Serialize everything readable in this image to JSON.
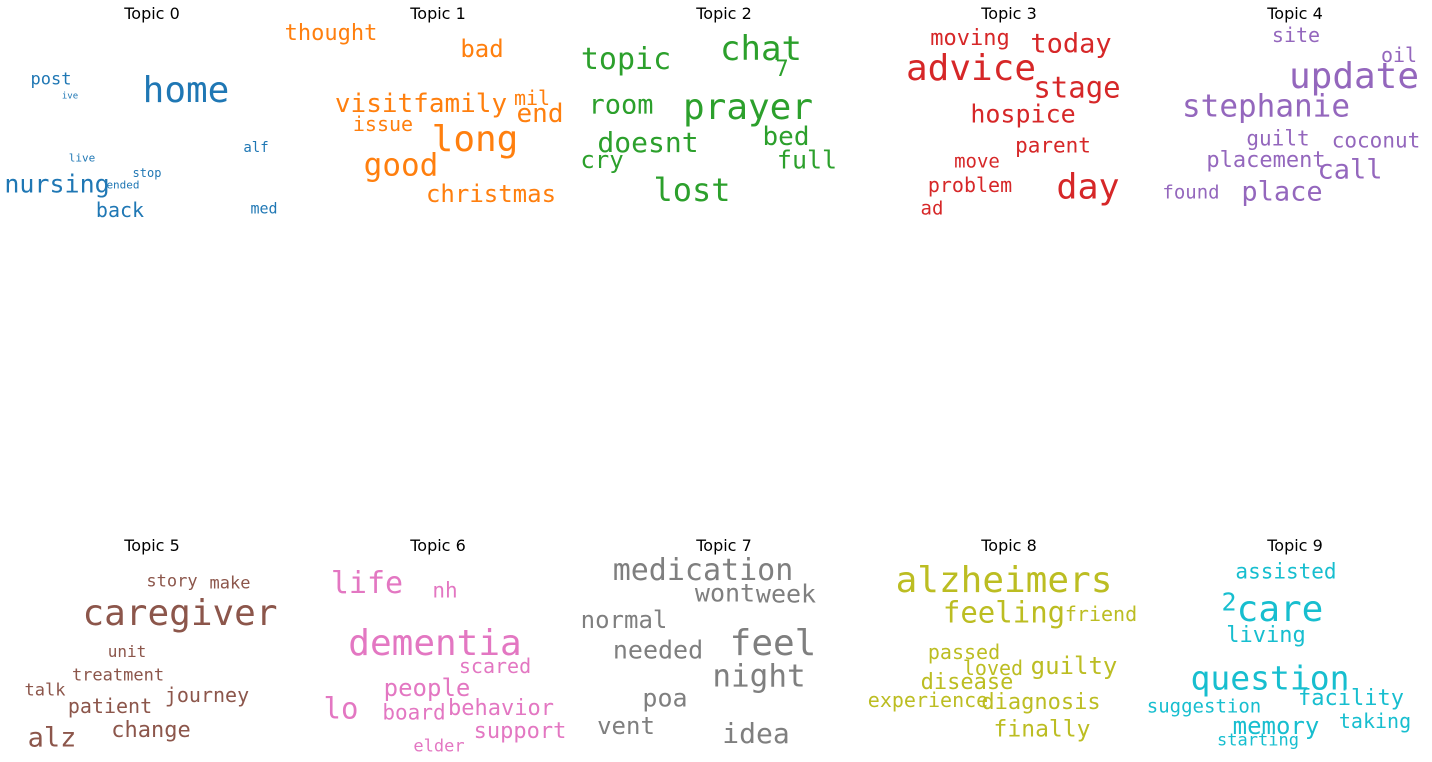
{
  "topics": [
    {
      "title": "Topic 0",
      "color": "#1f77b4",
      "words": [
        "home",
        "nursing",
        "back",
        "post",
        "alf",
        "med",
        "stop",
        "ended",
        "live",
        "ive"
      ],
      "weights": [
        1.0,
        0.7,
        0.55,
        0.46,
        0.38,
        0.42,
        0.34,
        0.3,
        0.3,
        0.26
      ]
    },
    {
      "title": "Topic 1",
      "color": "#ff7f0e",
      "words": [
        "long",
        "good",
        "visitfamily",
        "christmas",
        "end",
        "bad",
        "thought",
        "issue",
        "mil"
      ],
      "weights": [
        1.0,
        0.86,
        0.72,
        0.66,
        0.72,
        0.66,
        0.62,
        0.55,
        0.55
      ]
    },
    {
      "title": "Topic 2",
      "color": "#2ca02c",
      "words": [
        "prayer",
        "chat",
        "lost",
        "topic",
        "doesnt",
        "room",
        "bed",
        "full",
        "cry",
        "7"
      ],
      "weights": [
        1.0,
        0.94,
        0.9,
        0.82,
        0.78,
        0.76,
        0.72,
        0.7,
        0.66,
        0.62
      ]
    },
    {
      "title": "Topic 3",
      "color": "#d62728",
      "words": [
        "advice",
        "day",
        "stage",
        "today",
        "hospice",
        "moving",
        "parent",
        "problem",
        "move",
        "ad"
      ],
      "weights": [
        1.0,
        0.97,
        0.8,
        0.76,
        0.7,
        0.6,
        0.58,
        0.56,
        0.54,
        0.52
      ]
    },
    {
      "title": "Topic 4",
      "color": "#9467bd",
      "words": [
        "update",
        "stephanie",
        "call",
        "place",
        "placement",
        "guilt",
        "coconut",
        "site",
        "oil",
        "found"
      ],
      "weights": [
        1.0,
        0.86,
        0.76,
        0.76,
        0.6,
        0.58,
        0.57,
        0.56,
        0.55,
        0.52
      ]
    },
    {
      "title": "Topic 5",
      "color": "#8c564b",
      "words": [
        "caregiver",
        "alz",
        "change",
        "journey",
        "patient",
        "treatment",
        "talk",
        "unit",
        "story",
        "make"
      ],
      "weights": [
        1.0,
        0.74,
        0.6,
        0.56,
        0.56,
        0.46,
        0.46,
        0.44,
        0.48,
        0.48
      ]
    },
    {
      "title": "Topic 6",
      "color": "#e377c2",
      "words": [
        "dementia",
        "life",
        "lo",
        "people",
        "behavior",
        "support",
        "board",
        "scared",
        "nh",
        "elder"
      ],
      "weights": [
        1.0,
        0.82,
        0.8,
        0.66,
        0.62,
        0.6,
        0.58,
        0.55,
        0.57,
        0.48
      ]
    },
    {
      "title": "Topic 7",
      "color": "#7f7f7f",
      "words": [
        "feel",
        "medication",
        "night",
        "idea",
        "week",
        "wont",
        "needed",
        "normal",
        "poa",
        "vent"
      ],
      "weights": [
        1.0,
        0.82,
        0.86,
        0.78,
        0.7,
        0.7,
        0.7,
        0.68,
        0.7,
        0.66
      ]
    },
    {
      "title": "Topic 8",
      "color": "#bcbd22",
      "words": [
        "alzheimers",
        "feeling",
        "guilty",
        "finally",
        "diagnosis",
        "disease",
        "loved",
        "passed",
        "experience",
        "friend"
      ],
      "weights": [
        1.0,
        0.8,
        0.66,
        0.64,
        0.62,
        0.62,
        0.55,
        0.56,
        0.55,
        0.56
      ]
    },
    {
      "title": "Topic 9",
      "color": "#17becf",
      "words": [
        "care",
        "question",
        "memory",
        "living",
        "facility",
        "assisted",
        "suggestion",
        "taking",
        "2",
        "starting"
      ],
      "weights": [
        1.0,
        0.92,
        0.66,
        0.6,
        0.6,
        0.58,
        0.52,
        0.55,
        0.7,
        0.46
      ]
    }
  ]
}
